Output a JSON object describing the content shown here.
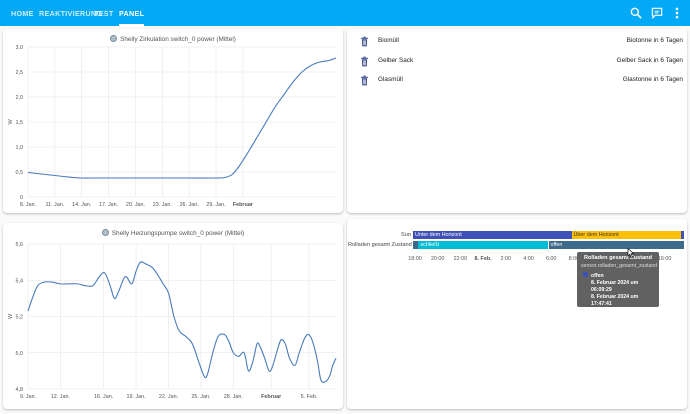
{
  "header": {
    "tabs": [
      {
        "label": "HOME"
      },
      {
        "label": "REAKTIVIERUNG"
      },
      {
        "label": "TEST"
      },
      {
        "label": "PANEL"
      }
    ],
    "active_tab": "PANEL",
    "actions": [
      "search-icon",
      "assist-icon",
      "more-vert-icon"
    ]
  },
  "colors": {
    "accent": "#03a9f4",
    "line": "#4a7bbd",
    "bar_blue": "#3f51b5",
    "bar_yellow": "#ffc107",
    "bar_cyan": "#00bcd4",
    "bar_slate": "#3d6a8a",
    "trash_icon": "#3f4f8f"
  },
  "trash": {
    "items": [
      {
        "label": "Biomüll",
        "state": "Biotonne in 6 Tagen",
        "icon": "trash-can-icon"
      },
      {
        "label": "Gelber Sack",
        "state": "Gelber Sack in 6 Tagen",
        "icon": "trash-can-icon"
      },
      {
        "label": "Glasmüll",
        "state": "Glastonne in 6 Tagen",
        "icon": "trash-can-icon"
      }
    ]
  },
  "timeline": {
    "rows": [
      {
        "label": "Sun",
        "segments": [
          {
            "text": "Unter dem Horizont",
            "color": "#3f51b5",
            "start": 0.0,
            "end": 0.585
          },
          {
            "text": "Über dem Horizont",
            "color": "#ffc107",
            "start": 0.585,
            "end": 0.988
          },
          {
            "text": "",
            "color": "#3f51b5",
            "start": 0.988,
            "end": 1.0
          }
        ]
      },
      {
        "label": "Rolladen gesamt Zustand",
        "segments": [
          {
            "text": "",
            "color": "#3d6a8a",
            "start": 0.0,
            "end": 0.02
          },
          {
            "text": "schließt",
            "color": "#00bcd4",
            "start": 0.02,
            "end": 0.5
          },
          {
            "text": "offen",
            "color": "#3d6a8a",
            "start": 0.5,
            "end": 1.0
          }
        ]
      }
    ],
    "ticks": [
      "18:00",
      "20:00",
      "22:00",
      "8. Feb.",
      "2:00",
      "4:00",
      "6:00",
      "8:00",
      "10:00",
      "12:00",
      "14:00",
      "16:00"
    ],
    "tooltip": {
      "title": "Rolladen gesamt Zustand",
      "entity": "sensor.rolladen_gesamt_zustand",
      "state": "offen",
      "start": "8. Februar 2024 um 06:09:29",
      "end": "8. Februar 2024 um 17:47:41",
      "duration": "Dauer: 11:38:11"
    }
  },
  "chart_data": [
    {
      "type": "line",
      "title": "",
      "series": [
        {
          "name": "Shelly Zirkulation switch_0 power (Mittel)"
        }
      ],
      "xlabel": "",
      "ylabel": "W",
      "y_ticks": [
        "3,0",
        "2,5",
        "2,0",
        "1,5",
        "1,0",
        "0,5",
        "0"
      ],
      "ylim": [
        0,
        3
      ],
      "x_ticks": [
        "8. Jan.",
        "11. Jan.",
        "14. Jan.",
        "17. Jan.",
        "20. Jan.",
        "23. Jan.",
        "26. Jan.",
        "29. Jan.",
        "Februar"
      ],
      "x_tick_bold": [
        "Februar"
      ],
      "x_range_days": [
        8,
        42.4
      ],
      "points": [
        [
          8,
          0.49
        ],
        [
          9,
          0.47
        ],
        [
          10,
          0.45
        ],
        [
          11,
          0.43
        ],
        [
          12,
          0.41
        ],
        [
          13,
          0.39
        ],
        [
          14,
          0.38
        ],
        [
          15,
          0.38
        ],
        [
          17,
          0.38
        ],
        [
          20,
          0.38
        ],
        [
          23,
          0.38
        ],
        [
          26,
          0.38
        ],
        [
          29,
          0.38
        ],
        [
          30,
          0.39
        ],
        [
          30.8,
          0.45
        ],
        [
          31.6,
          0.62
        ],
        [
          32.6,
          0.9
        ],
        [
          33.6,
          1.2
        ],
        [
          34.6,
          1.5
        ],
        [
          35.6,
          1.8
        ],
        [
          36.6,
          2.05
        ],
        [
          37.6,
          2.3
        ],
        [
          38.6,
          2.5
        ],
        [
          39.6,
          2.63
        ],
        [
          40.6,
          2.7
        ],
        [
          41.6,
          2.73
        ],
        [
          42.4,
          2.78
        ]
      ]
    },
    {
      "type": "line",
      "title": "",
      "series": [
        {
          "name": "Shelly Heizungspumpe switch_0 power (Mittel)"
        }
      ],
      "xlabel": "",
      "ylabel": "W",
      "y_ticks": [
        "5,6",
        "5,4",
        "5,2",
        "5,0",
        "4,8"
      ],
      "ylim": [
        4.8,
        5.6
      ],
      "x_ticks": [
        "9. Jan.",
        "12. Jan.",
        "16. Jan.",
        "19. Jan.",
        "22. Jan.",
        "25. Jan.",
        "28. Jan.",
        "Februar",
        "5. Feb."
      ],
      "x_tick_bold": [
        "Februar"
      ],
      "x_range_days": [
        9,
        37.5
      ],
      "points": [
        [
          9,
          5.23
        ],
        [
          9.4,
          5.3
        ],
        [
          9.9,
          5.37
        ],
        [
          10.5,
          5.39
        ],
        [
          11.2,
          5.39
        ],
        [
          12,
          5.38
        ],
        [
          12.8,
          5.38
        ],
        [
          13.6,
          5.38
        ],
        [
          14.3,
          5.37
        ],
        [
          15,
          5.37
        ],
        [
          15.6,
          5.42
        ],
        [
          16.1,
          5.44
        ],
        [
          16.6,
          5.37
        ],
        [
          17,
          5.3
        ],
        [
          17.4,
          5.34
        ],
        [
          18,
          5.42
        ],
        [
          18.6,
          5.38
        ],
        [
          19,
          5.45
        ],
        [
          19.4,
          5.5
        ],
        [
          19.9,
          5.49
        ],
        [
          20.5,
          5.47
        ],
        [
          21,
          5.43
        ],
        [
          21.5,
          5.38
        ],
        [
          22,
          5.33
        ],
        [
          22.5,
          5.2
        ],
        [
          23,
          5.12
        ],
        [
          23.6,
          5.09
        ],
        [
          24.2,
          5.05
        ],
        [
          24.8,
          4.95
        ],
        [
          25.3,
          4.87
        ],
        [
          25.6,
          4.88
        ],
        [
          26.1,
          5.0
        ],
        [
          26.6,
          5.09
        ],
        [
          27.2,
          5.1
        ],
        [
          27.6,
          5.06
        ],
        [
          28,
          5.0
        ],
        [
          28.5,
          4.98
        ],
        [
          29,
          5.0
        ],
        [
          29.4,
          4.9
        ],
        [
          29.8,
          4.95
        ],
        [
          30.2,
          5.05
        ],
        [
          30.5,
          5.03
        ],
        [
          30.9,
          4.97
        ],
        [
          31.3,
          4.9
        ],
        [
          31.6,
          4.92
        ],
        [
          32,
          5.0
        ],
        [
          32.4,
          5.07
        ],
        [
          32.8,
          5.05
        ],
        [
          33.2,
          4.97
        ],
        [
          33.7,
          4.93
        ],
        [
          34.1,
          5.0
        ],
        [
          34.6,
          5.08
        ],
        [
          35,
          5.1
        ],
        [
          35.4,
          5.05
        ],
        [
          35.8,
          4.95
        ],
        [
          36.1,
          4.85
        ],
        [
          36.5,
          4.84
        ],
        [
          36.9,
          4.87
        ],
        [
          37.2,
          4.93
        ],
        [
          37.5,
          4.97
        ]
      ]
    }
  ]
}
